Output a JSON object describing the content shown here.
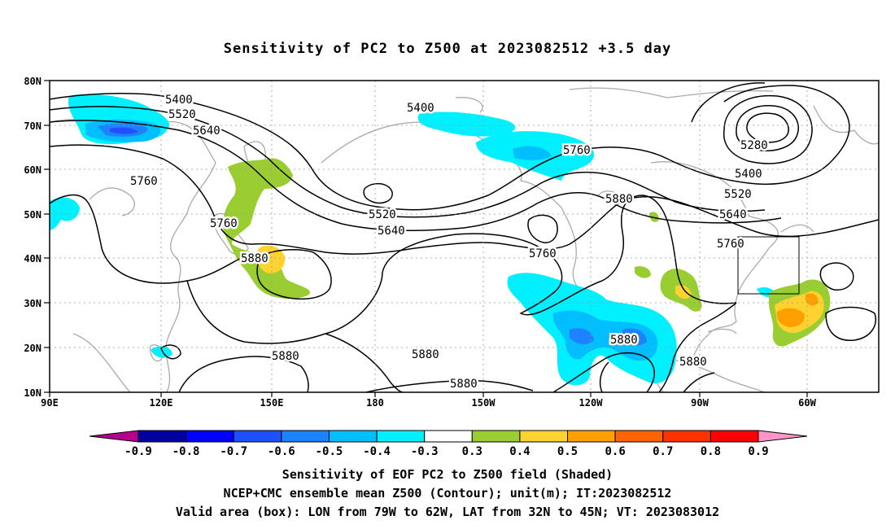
{
  "title": "Sensitivity of PC2 to Z500 at 2023082512 +3.5 day",
  "axes": {
    "lat_labels": [
      "80N",
      "70N",
      "60N",
      "50N",
      "40N",
      "30N",
      "20N",
      "10N"
    ],
    "lon_labels": [
      "90E",
      "120E",
      "150E",
      "180",
      "150W",
      "120W",
      "90W",
      "60W"
    ]
  },
  "contour_labels": {
    "c1": "5400",
    "c2": "5520",
    "c3": "5640",
    "c4": "5760",
    "c5": "5400",
    "c6": "5760",
    "c7": "5880",
    "c8": "5280",
    "c9": "5400",
    "c10": "5520",
    "c11": "5640",
    "c12": "5760",
    "c13": "5760",
    "c14": "5880",
    "c15": "5520",
    "c16": "5640",
    "c17": "5760",
    "c18": "5880",
    "c19": "5880",
    "c20": "5880",
    "c21": "5880",
    "c22": "5880"
  },
  "colorbar": {
    "labels": [
      "-0.9",
      "-0.8",
      "-0.7",
      "-0.6",
      "-0.5",
      "-0.4",
      "-0.3",
      "0.3",
      "0.4",
      "0.5",
      "0.6",
      "0.7",
      "0.8",
      "0.9"
    ],
    "colors": [
      "#0000a0",
      "#0000ff",
      "#1e50ff",
      "#1e82ff",
      "#00beff",
      "#00f0ff",
      "#ffffff",
      "#9acd32",
      "#ffd230",
      "#ffa000",
      "#ff6400",
      "#ff3200",
      "#ff0000"
    ],
    "neg_arrow_color": "#b4008c",
    "pos_arrow_color": "#ff96c8"
  },
  "footer": {
    "line1": "Sensitivity of EOF PC2 to Z500 field (Shaded)",
    "line2": "NCEP+CMC ensemble mean Z500 (Contour); unit(m); IT:2023082512",
    "line3": "Valid area (box): LON from 79W to 62W, LAT from 32N to 45N; VT: 2023083012"
  }
}
